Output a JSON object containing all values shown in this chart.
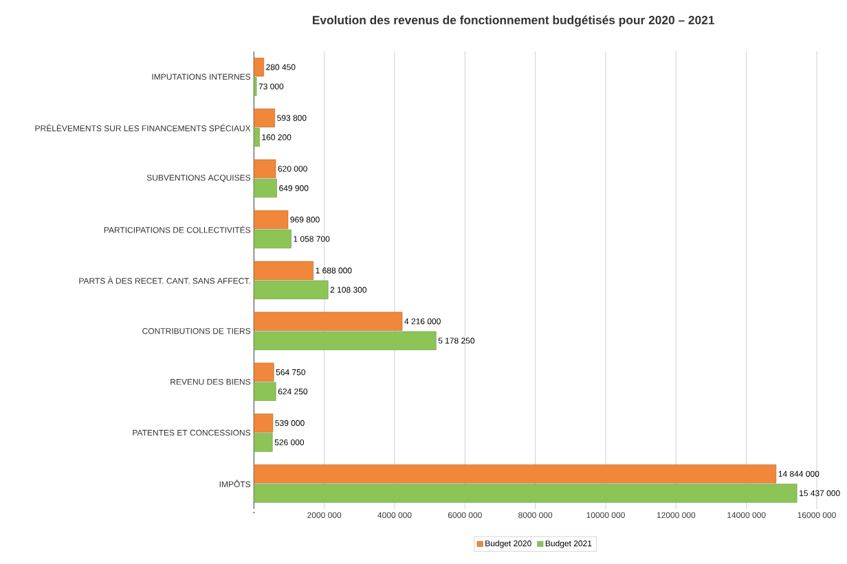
{
  "chart_data": {
    "type": "bar",
    "orientation": "horizontal",
    "title": "Evolution des revenus de fonctionnement budgétisés pour 2020 – 2021",
    "categories": [
      "IMPUTATIONS INTERNES",
      "PRÉLÈVEMENTS SUR LES FINANCEMENTS SPÉCIAUX",
      "SUBVENTIONS ACQUISES",
      "PARTICIPATIONS DE COLLECTIVITÉS",
      "PARTS À DES RECET. CANT. SANS AFFECT.",
      "CONTRIBUTIONS DE TIERS",
      "REVENU DES BIENS",
      "PATENTES ET CONCESSIONS",
      "IMPÔTS"
    ],
    "series": [
      {
        "name": "Budget 2020",
        "color": "#f0873a",
        "values": [
          280450,
          593800,
          620000,
          969800,
          1688000,
          4216000,
          564750,
          539000,
          14844000
        ],
        "value_labels": [
          "280 450",
          "593 800",
          "620 000",
          "969 800",
          "1 688 000",
          "4 216 000",
          "564 750",
          "539 000",
          "14 844 000"
        ]
      },
      {
        "name": "Budget 2021",
        "color": "#8dc456",
        "values": [
          73000,
          160200,
          649900,
          1058700,
          2108300,
          5178250,
          624250,
          526000,
          15437000
        ],
        "value_labels": [
          "73 000",
          "160 200",
          "649 900",
          "1 058 700",
          "2 108 300",
          "5 178 250",
          "624 250",
          "526 000",
          "15 437 000"
        ]
      }
    ],
    "xlim": [
      0,
      16000000
    ],
    "xticks": [
      {
        "value": 0,
        "label": "-"
      },
      {
        "value": 2000000,
        "label": "2000 000"
      },
      {
        "value": 4000000,
        "label": "4000 000"
      },
      {
        "value": 6000000,
        "label": "6000 000"
      },
      {
        "value": 8000000,
        "label": "8000 000"
      },
      {
        "value": 10000000,
        "label": "10000 000"
      },
      {
        "value": 12000000,
        "label": "12000 000"
      },
      {
        "value": 14000000,
        "label": "14000 000"
      },
      {
        "value": 16000000,
        "label": "16000 000"
      }
    ],
    "grid": "x",
    "legend": "bottom"
  }
}
